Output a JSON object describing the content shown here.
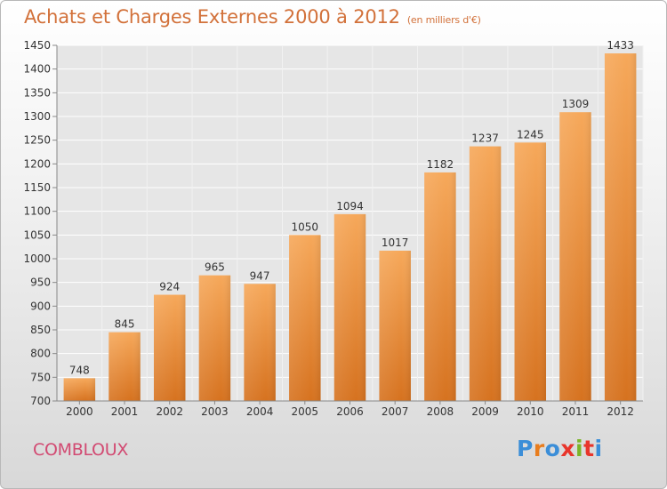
{
  "header": {
    "title": "Achats et Charges Externes 2000 à 2012",
    "unit": "(en milliers d'€)"
  },
  "footer": {
    "commune": "COMBLOUX",
    "logo_text": "Proxiti",
    "logo_colors": [
      "#3b8ed8",
      "#e87d1e",
      "#3b8ed8",
      "#e8352b",
      "#7cb428",
      "#e8352b",
      "#3b8ed8"
    ]
  },
  "chart_data": {
    "type": "bar",
    "title": "Achats et Charges Externes 2000 à 2012",
    "subtitle": "(en milliers d'€)",
    "categories": [
      "2000",
      "2001",
      "2002",
      "2003",
      "2004",
      "2005",
      "2006",
      "2007",
      "2008",
      "2009",
      "2010",
      "2011",
      "2012"
    ],
    "values": [
      748,
      845,
      924,
      965,
      947,
      1050,
      1094,
      1017,
      1182,
      1237,
      1245,
      1309,
      1433
    ],
    "ylim": [
      700,
      1450
    ],
    "ytick_step": 50,
    "xlabel": "",
    "ylabel": "",
    "grid": true,
    "bar_color_top": "#f6a85a",
    "bar_color_bottom": "#d6721f"
  }
}
